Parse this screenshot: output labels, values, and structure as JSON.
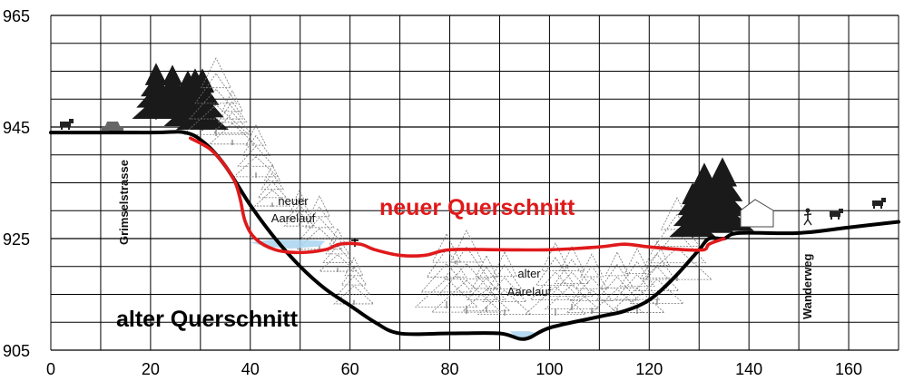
{
  "chart_data": {
    "type": "diagram",
    "x_ticks": [
      "0",
      "20",
      "40",
      "60",
      "80",
      "100",
      "120",
      "140",
      "160"
    ],
    "y_ticks": [
      "965",
      "945",
      "925",
      "905"
    ],
    "xlim": [
      0,
      170
    ],
    "ylim": [
      905,
      965
    ],
    "labels": {
      "new_section": "neuer Querschnitt",
      "old_section": "alter Querschnitt",
      "new_river": [
        "neuer",
        "Aarelauf"
      ],
      "old_river": [
        "alter",
        "Aarelauf"
      ],
      "road": "Grimselstrasse",
      "trail": "Wanderweg"
    },
    "colors": {
      "new_section": "#e0191b",
      "old_section": "#000000",
      "water": "#a9d3ee",
      "grid": "#000000"
    },
    "profiles": {
      "old": [
        [
          0,
          944
        ],
        [
          20,
          944
        ],
        [
          27,
          944
        ],
        [
          31,
          942
        ],
        [
          35,
          938
        ],
        [
          40,
          931
        ],
        [
          45,
          925
        ],
        [
          50,
          920
        ],
        [
          55,
          916
        ],
        [
          60,
          913
        ],
        [
          65,
          910
        ],
        [
          70,
          908
        ],
        [
          80,
          908
        ],
        [
          90,
          908
        ],
        [
          95,
          907
        ],
        [
          100,
          909
        ],
        [
          110,
          911
        ],
        [
          115,
          912
        ],
        [
          120,
          914
        ],
        [
          125,
          918
        ],
        [
          130,
          923
        ],
        [
          132,
          925
        ],
        [
          135,
          925
        ],
        [
          138,
          926
        ],
        [
          150,
          926
        ],
        [
          160,
          927
        ],
        [
          170,
          928
        ]
      ],
      "new": [
        [
          28,
          943
        ],
        [
          32,
          941
        ],
        [
          35,
          938
        ],
        [
          37,
          935
        ],
        [
          38,
          932
        ],
        [
          39,
          928
        ],
        [
          41,
          925
        ],
        [
          45,
          923
        ],
        [
          50,
          922.5
        ],
        [
          55,
          923
        ],
        [
          58,
          924
        ],
        [
          62,
          924
        ],
        [
          65,
          923
        ],
        [
          70,
          922
        ],
        [
          75,
          922
        ],
        [
          80,
          923
        ],
        [
          90,
          923
        ],
        [
          100,
          923
        ],
        [
          110,
          923.5
        ],
        [
          115,
          924
        ],
        [
          120,
          923.5
        ],
        [
          127,
          923
        ],
        [
          131,
          923
        ],
        [
          132,
          924
        ],
        [
          135,
          925
        ]
      ]
    },
    "water": [
      {
        "name": "new_river",
        "points": [
          [
            40,
            924.3
          ],
          [
            44,
            924.8
          ],
          [
            50,
            924.8
          ],
          [
            55,
            924.6
          ],
          [
            54,
            923.6
          ],
          [
            48,
            923.2
          ],
          [
            43,
            923.6
          ]
        ]
      },
      {
        "name": "old_river",
        "points": [
          [
            92,
            908.4
          ],
          [
            96,
            908.4
          ],
          [
            98,
            907.8
          ],
          [
            95,
            907.2
          ],
          [
            93,
            907.6
          ]
        ]
      }
    ]
  }
}
